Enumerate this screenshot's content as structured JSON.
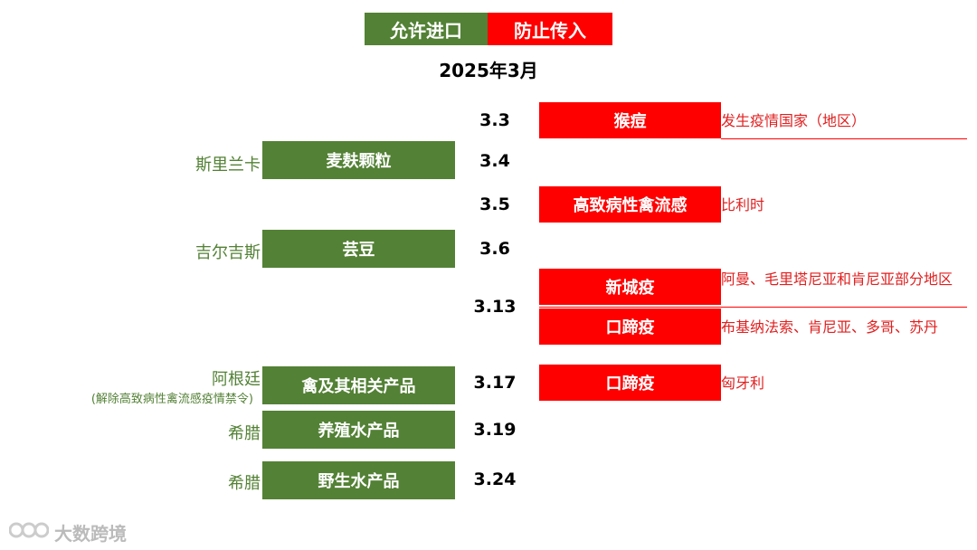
{
  "legend": {
    "allow": "允许进口",
    "prevent": "防止传入",
    "allow_color": "#538135",
    "prevent_color": "#ff0000"
  },
  "title": "2025年3月",
  "dates": [
    "3.3",
    "3.4",
    "3.5",
    "3.6",
    "3.13",
    "3.17",
    "3.19",
    "3.24"
  ],
  "imports": [
    {
      "country": "斯里兰卡",
      "product": "麦麸颗粒"
    },
    {
      "country": "吉尔吉斯",
      "product": "芸豆"
    },
    {
      "country": "阿根廷",
      "note": "(解除高致病性禽流感疫情禁令)",
      "product": "禽及其相关产品"
    },
    {
      "country": "希腊",
      "product": "养殖水产品"
    },
    {
      "country": "希腊",
      "product": "野生水产品"
    }
  ],
  "diseases": [
    {
      "name": "猴痘",
      "region": "发生疫情国家（地区）"
    },
    {
      "name": "高致病性禽流感",
      "region": "比利时"
    },
    {
      "name": "新城疫",
      "region": "阿曼、毛里塔尼亚和肯尼亚部分地区"
    },
    {
      "name": "口蹄疫",
      "region": "布基纳法索、肯尼亚、多哥、苏丹"
    },
    {
      "name": "口蹄疫",
      "region": "匈牙利"
    }
  ],
  "watermark": {
    "text": "大数跨境",
    "icon": "logo-icon"
  }
}
